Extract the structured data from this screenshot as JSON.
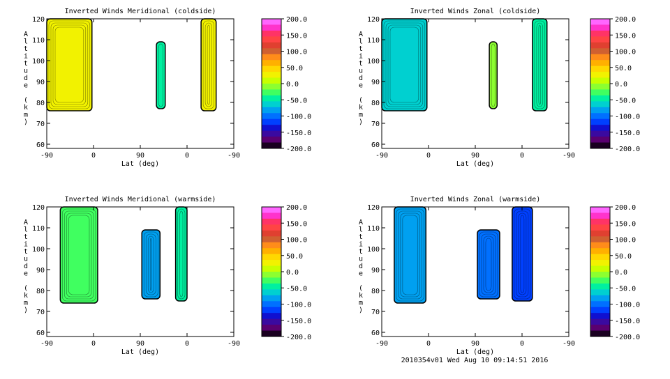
{
  "footer": "2010354v01 Wed Aug 10 09:14:51 2016",
  "colorbar": {
    "tick_labels": [
      "200.0",
      "150.0",
      "100.0",
      "50.0",
      "0.0",
      "-50.0",
      "-100.0",
      "-150.0",
      "-200.0"
    ],
    "colors": [
      "#ff66ff",
      "#ff33cc",
      "#ff3366",
      "#ff4444",
      "#e04030",
      "#d06030",
      "#ff8c1a",
      "#ffb000",
      "#ffd800",
      "#f2f200",
      "#c8ff00",
      "#8cff30",
      "#40ff60",
      "#00f0a0",
      "#00d0d0",
      "#00a0f0",
      "#0070ff",
      "#0040ff",
      "#1010d0",
      "#3a0aa0",
      "#5a0070",
      "#1a0020"
    ]
  },
  "chart_data": [
    {
      "type": "heatmap",
      "title": "Inverted Winds Meridional (coldside)",
      "xlabel": "Lat (deg)",
      "ylabel": "Altitude (km)",
      "x_tick_labels": [
        "-90",
        "0",
        "90",
        "0",
        "-90"
      ],
      "y_ticks": [
        60,
        70,
        80,
        90,
        100,
        110,
        120
      ],
      "ylim": [
        58,
        120
      ],
      "value_range": [
        -200,
        200
      ],
      "regions": [
        {
          "x": [
            -90,
            -3
          ],
          "y": [
            76,
            120
          ],
          "value": 25
        },
        {
          "x": [
            121,
            138
          ],
          "y": [
            77,
            109
          ],
          "value": -40
        },
        {
          "x": [
            207,
            236
          ],
          "y": [
            76,
            120
          ],
          "value": 35
        }
      ]
    },
    {
      "type": "heatmap",
      "title": "Inverted Winds Zonal (coldside)",
      "xlabel": "Lat (deg)",
      "ylabel": "Altitude (km)",
      "x_tick_labels": [
        "-90",
        "0",
        "90",
        "0",
        "-90"
      ],
      "y_ticks": [
        60,
        70,
        80,
        90,
        100,
        110,
        120
      ],
      "ylim": [
        58,
        120
      ],
      "value_range": [
        -200,
        200
      ],
      "regions": [
        {
          "x": [
            -90,
            -3
          ],
          "y": [
            76,
            120
          ],
          "value": -70
        },
        {
          "x": [
            117,
            132
          ],
          "y": [
            77,
            109
          ],
          "value": 0
        },
        {
          "x": [
            200,
            228
          ],
          "y": [
            76,
            120
          ],
          "value": -40
        }
      ]
    },
    {
      "type": "heatmap",
      "title": "Inverted Winds Meridional (warmside)",
      "xlabel": "Lat (deg)",
      "ylabel": "Altitude (km)",
      "x_tick_labels": [
        "-90",
        "0",
        "90",
        "0",
        "-90"
      ],
      "y_ticks": [
        60,
        70,
        80,
        90,
        100,
        110,
        120
      ],
      "ylim": [
        58,
        120
      ],
      "value_range": [
        -200,
        200
      ],
      "regions": [
        {
          "x": [
            -64,
            8
          ],
          "y": [
            74,
            120
          ],
          "value": -20
        },
        {
          "x": [
            93,
            128
          ],
          "y": [
            76,
            109
          ],
          "value": -90
        },
        {
          "x": [
            158,
            180
          ],
          "y": [
            75,
            120
          ],
          "value": -50
        }
      ]
    },
    {
      "type": "heatmap",
      "title": "Inverted Winds Zonal (warmside)",
      "xlabel": "Lat (deg)",
      "ylabel": "Altitude (km)",
      "x_tick_labels": [
        "-90",
        "0",
        "90",
        "0",
        "-90"
      ],
      "y_ticks": [
        60,
        70,
        80,
        90,
        100,
        110,
        120
      ],
      "ylim": [
        58,
        120
      ],
      "value_range": [
        -200,
        200
      ],
      "regions": [
        {
          "x": [
            -66,
            -5
          ],
          "y": [
            74,
            120
          ],
          "value": -80
        },
        {
          "x": [
            94,
            137
          ],
          "y": [
            76,
            109
          ],
          "value": -100
        },
        {
          "x": [
            161,
            200
          ],
          "y": [
            75,
            120
          ],
          "value": -110
        }
      ]
    }
  ]
}
